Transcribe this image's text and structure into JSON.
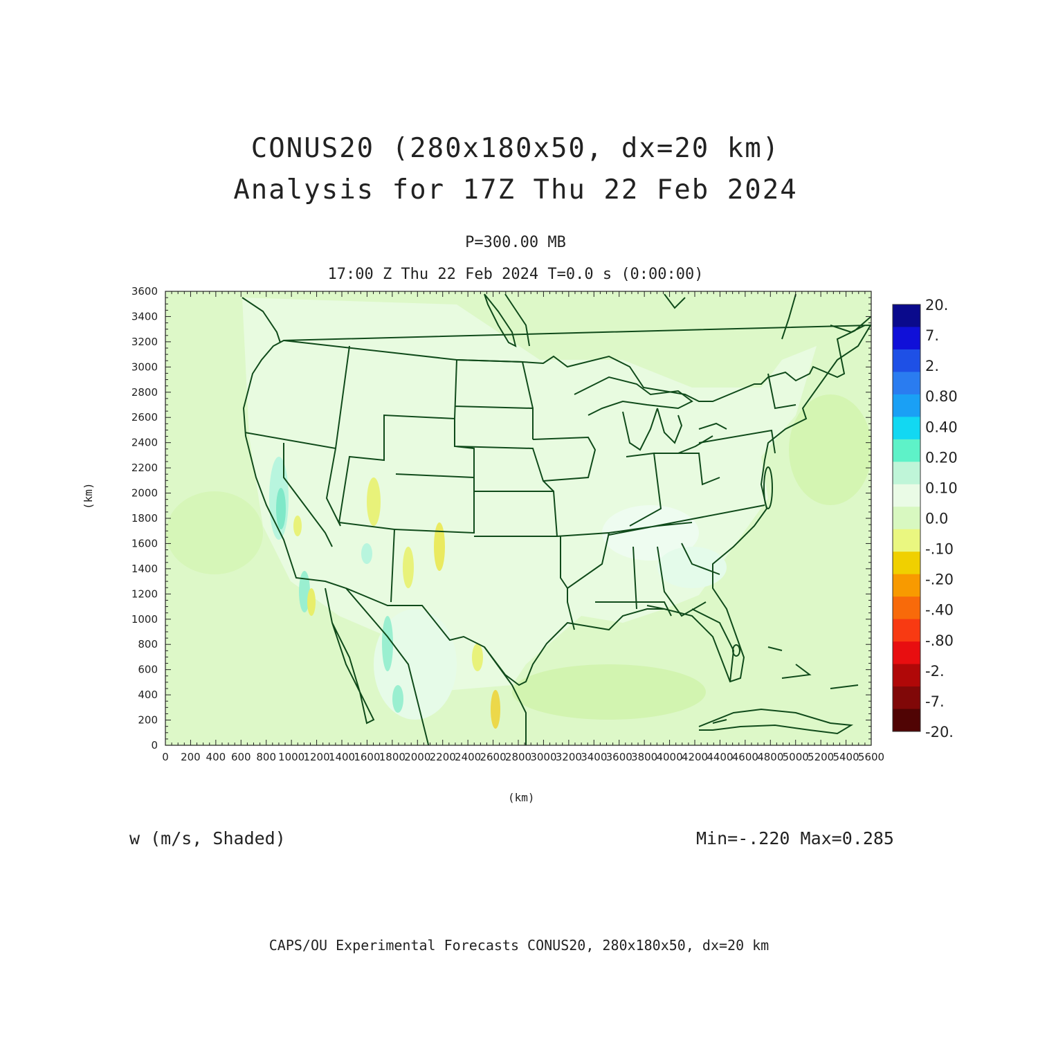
{
  "title_line1": "CONUS20 (280x180x50, dx=20 km)",
  "title_line2": "Analysis for 17Z Thu 22 Feb 2024",
  "level_label": "P=300.00 MB",
  "time_label": "17:00 Z Thu 22 Feb 2024    T=0.0 s (0:00:00)",
  "x_axis_label": "(km)",
  "y_axis_label": "(km)",
  "field_label": "w (m/s, Shaded)",
  "min_max_label": "Min=-.220 Max=0.285",
  "footer": "CAPS/OU Experimental Forecasts  CONUS20, 280x180x50, dx=20 km",
  "chart_data": {
    "type": "heatmap",
    "x_ticks": [
      "0",
      "200",
      "400",
      "600",
      "800",
      "1000",
      "1200",
      "1400",
      "1600",
      "1800",
      "2000",
      "2200",
      "2400",
      "2600",
      "2800",
      "3000",
      "3200",
      "3400",
      "3600",
      "3800",
      "4000",
      "4200",
      "4400",
      "4600",
      "4800",
      "5000",
      "5200",
      "5400",
      "5600"
    ],
    "y_ticks": [
      "0",
      "200",
      "400",
      "600",
      "800",
      "1000",
      "1200",
      "1400",
      "1600",
      "1800",
      "2000",
      "2200",
      "2400",
      "2600",
      "2800",
      "3000",
      "3200",
      "3400",
      "3600"
    ],
    "xlim": [
      0,
      5600
    ],
    "ylim": [
      0,
      3600
    ],
    "min": -0.22,
    "max": 0.285,
    "colorbar": {
      "labels": [
        "20.",
        "7.",
        "2.",
        "0.80",
        "0.40",
        "0.20",
        "0.10",
        "0.0",
        "-.10",
        "-.20",
        "-.40",
        "-.80",
        "-2.",
        "-7.",
        "-20."
      ],
      "colors": [
        "#0a0a8c",
        "#1010d8",
        "#1e50e6",
        "#2a7cf0",
        "#1aa0f5",
        "#12d8f2",
        "#5ef2c8",
        "#bff5d8",
        "#eafbe6",
        "#d8f8c0",
        "#eaf780",
        "#f0d000",
        "#f89a00",
        "#f86a0a",
        "#f83a12",
        "#e80e10",
        "#b00808",
        "#800808",
        "#500404"
      ]
    }
  }
}
